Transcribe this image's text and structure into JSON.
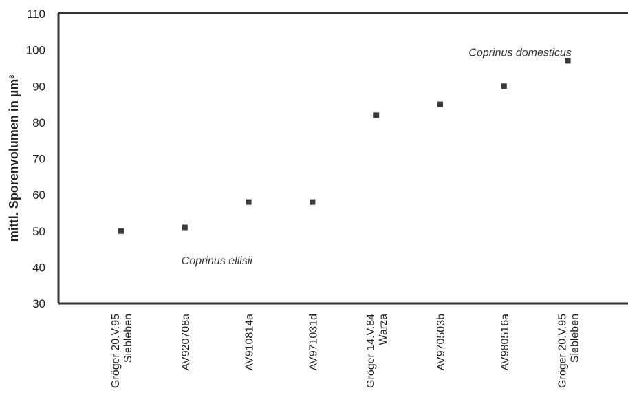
{
  "chart_data": {
    "type": "scatter",
    "ylabel": "mittl. Sporenvolumen in µm³",
    "ylim": [
      30,
      110
    ],
    "yticks": [
      30,
      40,
      50,
      60,
      70,
      80,
      90,
      100,
      110
    ],
    "grid": false,
    "categories": [
      [
        "Gröger 20.V.95",
        "Siebleben"
      ],
      [
        "AV920708a"
      ],
      [
        "AV910814a"
      ],
      [
        "AV971031d"
      ],
      [
        "Gröger 14.V.84",
        "Warza"
      ],
      [
        "AV970503b"
      ],
      [
        "AV980516a"
      ],
      [
        "Gröger 20.V.95",
        "Siebleben"
      ]
    ],
    "values": [
      50,
      51,
      58,
      58,
      82,
      85,
      90,
      97
    ],
    "annotations": [
      {
        "text": "Coprinus ellisii",
        "x_index": 1.0,
        "y": 42
      },
      {
        "text": "Coprinus domesticus",
        "x_index": 5.5,
        "y": 99.5
      }
    ],
    "marker_color": "#3a3a3a"
  }
}
